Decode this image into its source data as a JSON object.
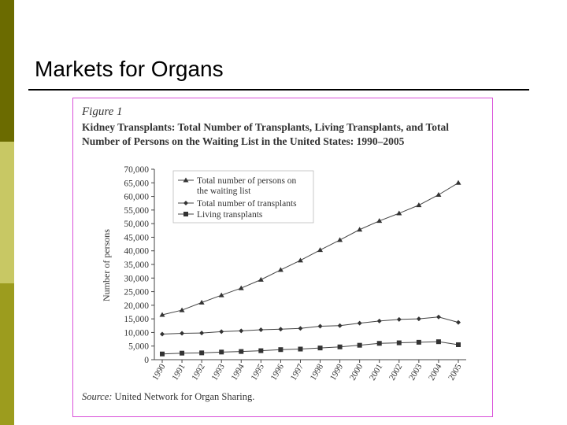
{
  "slide": {
    "title": "Markets for Organs"
  },
  "figure": {
    "label": "Figure 1",
    "caption_line1": "Kidney Transplants: Total Number of Transplants, Living Transplants, and Total",
    "caption_line2": "Number of Persons on the Waiting List in the United States: 1990–2005",
    "source_prefix": "Source:",
    "source_text": " United Network for Organ Sharing."
  },
  "colors": {
    "bar_dark": "#6b6b00",
    "bar_light": "#c8c864",
    "bar_mid": "#9c9c1e",
    "frame": "#d94fd9"
  },
  "chart_data": {
    "type": "line",
    "title": "",
    "xlabel": "",
    "ylabel": "Number of persons",
    "x": [
      "1990",
      "1991",
      "1992",
      "1993",
      "1994",
      "1995",
      "1996",
      "1997",
      "1998",
      "1999",
      "2000",
      "2001",
      "2002",
      "2003",
      "2004",
      "2005"
    ],
    "ylim": [
      0,
      70000
    ],
    "yticks": [
      "0",
      "5,000",
      "10,000",
      "15,000",
      "20,000",
      "25,000",
      "30,000",
      "35,000",
      "40,000",
      "45,000",
      "50,000",
      "55,000",
      "60,000",
      "65,000",
      "70,000"
    ],
    "grid": false,
    "legend_position": "top-left",
    "series": [
      {
        "name": "Total number of persons on the waiting list",
        "legend_line1": "Total number of persons on",
        "legend_line2": "the waiting list",
        "marker": "triangle",
        "values": [
          16500,
          18200,
          21000,
          23700,
          26300,
          29400,
          33000,
          36500,
          40300,
          44000,
          47800,
          51000,
          53800,
          56800,
          60600,
          65000
        ]
      },
      {
        "name": "Total number of transplants",
        "marker": "diamond",
        "values": [
          9400,
          9700,
          9800,
          10300,
          10600,
          11000,
          11200,
          11500,
          12300,
          12500,
          13400,
          14200,
          14800,
          15000,
          15700,
          13700
        ]
      },
      {
        "name": "Living transplants",
        "marker": "square",
        "values": [
          2100,
          2400,
          2500,
          2800,
          3000,
          3300,
          3700,
          3900,
          4300,
          4700,
          5300,
          6000,
          6200,
          6400,
          6600,
          5500
        ]
      }
    ]
  }
}
